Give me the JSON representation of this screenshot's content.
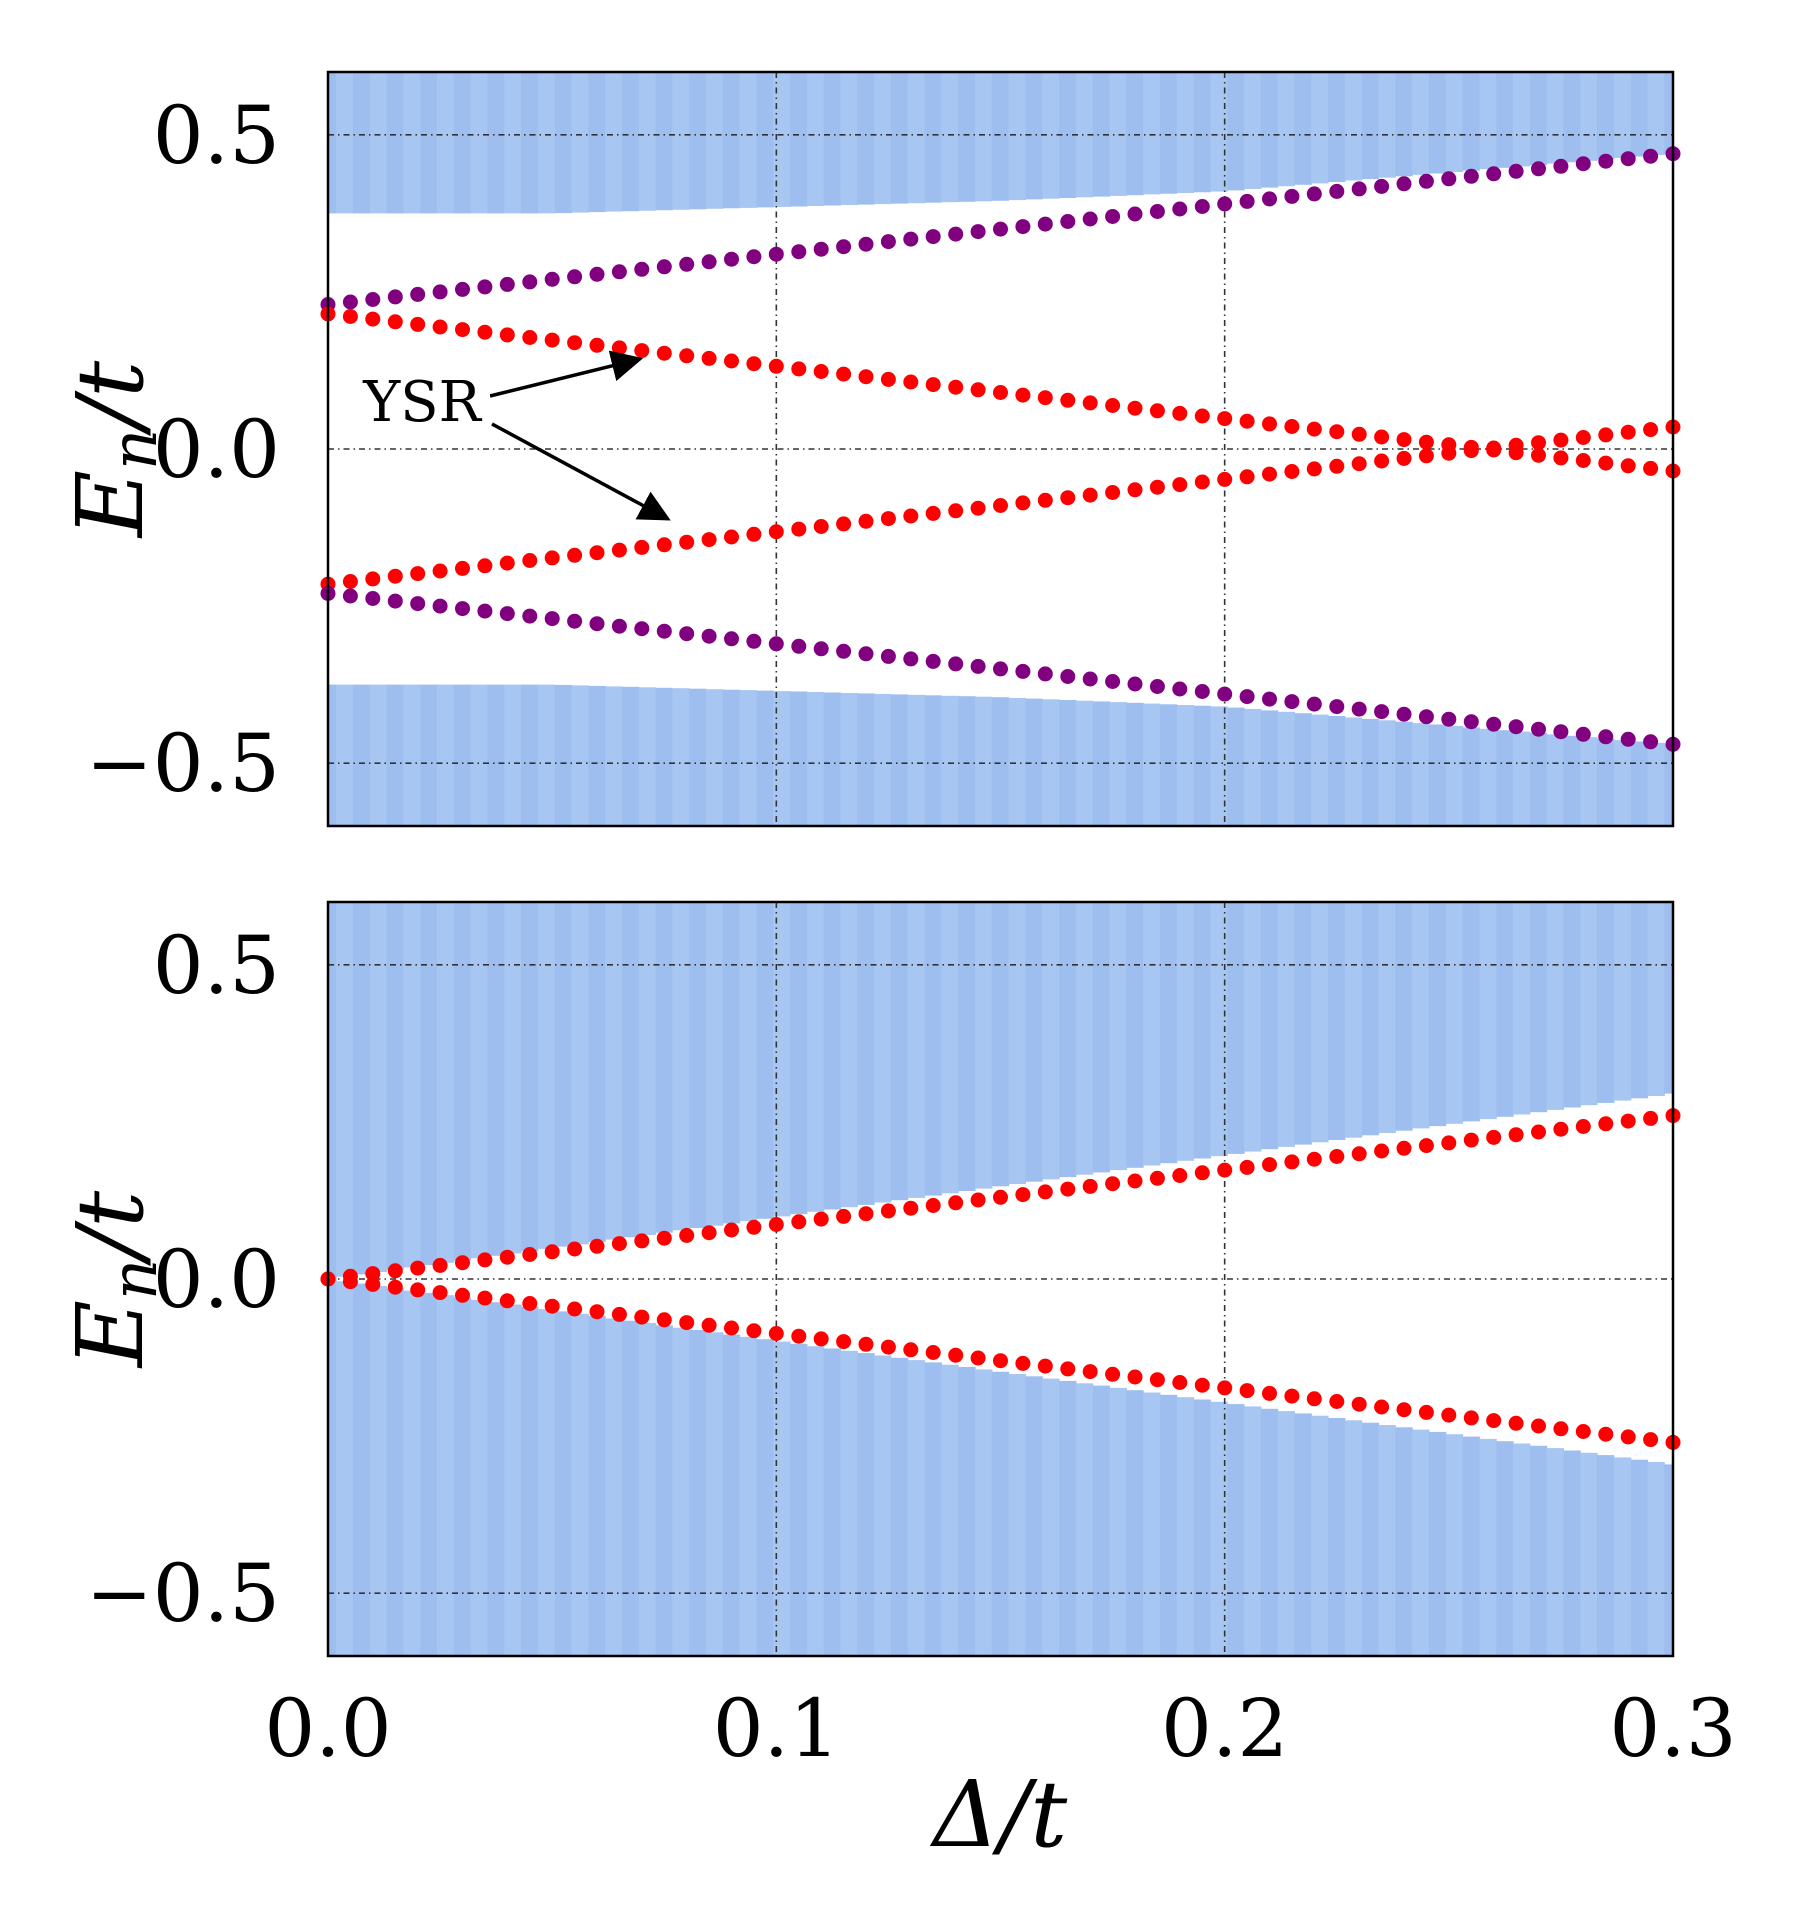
{
  "chart_data": [
    {
      "type": "scatter",
      "panel": "top",
      "ylabel": "E_n/t",
      "xlim": [
        0.0,
        0.3
      ],
      "ylim": [
        -0.6,
        0.6
      ],
      "yticks": [
        {
          "value": 0.5,
          "label": "0.5"
        },
        {
          "value": 0.0,
          "label": "0.0"
        },
        {
          "value": -0.5,
          "label": "−0.5"
        }
      ],
      "xgrid": [
        0.1,
        0.2
      ],
      "grid": true,
      "continuum_color": "#a8c6f2",
      "continuum": {
        "x": [
          0.0,
          0.05,
          0.1,
          0.15,
          0.2,
          0.25,
          0.3
        ],
        "upper_edge": [
          0.375,
          0.375,
          0.385,
          0.395,
          0.41,
          0.44,
          0.47
        ],
        "lower_edge": [
          -0.375,
          -0.375,
          -0.385,
          -0.395,
          -0.41,
          -0.44,
          -0.47
        ]
      },
      "series": [
        {
          "name": "upper purple branch",
          "color": "#800080",
          "y0": 0.23,
          "y1": 0.47
        },
        {
          "name": "upper red YSR branch",
          "color": "#ff0000",
          "y0": 0.215,
          "y1": -0.035
        },
        {
          "name": "lower red YSR branch",
          "color": "#ff0000",
          "y0": -0.215,
          "y1": 0.035
        },
        {
          "name": "lower purple branch",
          "color": "#800080",
          "y0": -0.23,
          "y1": -0.47
        }
      ],
      "points_per_series": 61,
      "annotation": {
        "text": "YSR",
        "arrows_to": [
          {
            "x": 0.07,
            "y": 0.14
          },
          {
            "x": 0.075,
            "y": -0.12
          }
        ]
      }
    },
    {
      "type": "scatter",
      "panel": "bottom",
      "xlabel": "Δ/t",
      "ylabel": "E_n/t",
      "xlim": [
        0.0,
        0.3
      ],
      "ylim": [
        -0.6,
        0.6
      ],
      "xticks": [
        {
          "value": 0.0,
          "label": "0.0"
        },
        {
          "value": 0.1,
          "label": "0.1"
        },
        {
          "value": 0.2,
          "label": "0.2"
        },
        {
          "value": 0.3,
          "label": "0.3"
        }
      ],
      "yticks": [
        {
          "value": 0.5,
          "label": "0.5"
        },
        {
          "value": 0.0,
          "label": "0.0"
        },
        {
          "value": -0.5,
          "label": "−0.5"
        }
      ],
      "xgrid": [
        0.1,
        0.2
      ],
      "grid": true,
      "continuum_color": "#a8c6f2",
      "continuum": {
        "x": [
          0.0,
          0.3
        ],
        "upper_edge": [
          0.0,
          0.295
        ],
        "lower_edge": [
          0.0,
          -0.295
        ]
      },
      "series": [
        {
          "name": "upper red branch",
          "color": "#ff0000",
          "y0": 0.0,
          "y1": 0.26
        },
        {
          "name": "lower red branch",
          "color": "#ff0000",
          "y0": 0.0,
          "y1": -0.26
        }
      ],
      "points_per_series": 61
    }
  ],
  "labels": {
    "ylabel_main": "E",
    "ylabel_sub": "n",
    "ylabel_tail": "/t",
    "xlabel": "Δ/t",
    "annotation": "YSR"
  }
}
